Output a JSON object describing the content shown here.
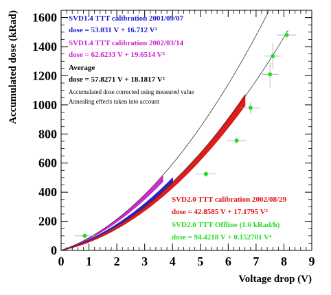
{
  "chart_data": {
    "type": "scatter",
    "xlabel": "Voltage drop (V)",
    "ylabel": "Accumulated dose (kRad)",
    "xlim": [
      0,
      9
    ],
    "ylim": [
      0,
      1650
    ],
    "x_ticks": [
      "0",
      "1",
      "2",
      "3",
      "4",
      "5",
      "6",
      "7",
      "8",
      "9"
    ],
    "x_tick_values": [
      0,
      1,
      2,
      3,
      4,
      5,
      6,
      7,
      8,
      9
    ],
    "y_ticks": [
      "0",
      "200",
      "400",
      "600",
      "800",
      "1000",
      "1200",
      "1400",
      "1600"
    ],
    "y_tick_values": [
      0,
      200,
      400,
      600,
      800,
      1000,
      1200,
      1400,
      1600
    ],
    "grid": false,
    "legend_placement": "top-left and bottom-right text blocks",
    "annotations": [
      {
        "text": "SVD1.4 TTT calibration 2001/09/07",
        "color": "#1a1acc"
      },
      {
        "text": "dose = 53.031 V + 16.712 V²",
        "color": "#1a1acc"
      },
      {
        "text": "SVD1.4 TTT calibration 2002/03/14",
        "color": "#cc22cc"
      },
      {
        "text": "dose = 62.6233 V + 19.6514 V²",
        "color": "#cc22cc"
      },
      {
        "text": "Average",
        "color": "#000000"
      },
      {
        "text": "dose = 57.8271 V + 18.1817 V²",
        "color": "#000000"
      },
      {
        "text": "Accumulated dose corrected using measured value",
        "color": "#000000"
      },
      {
        "text": "Annealing effects taken into account",
        "color": "#000000"
      },
      {
        "text": "SVD2.0 TTT calibration 2002/08/29",
        "color": "#dd1111"
      },
      {
        "text": "dose = 42.8585 V + 17.1795 V²",
        "color": "#dd1111"
      },
      {
        "text": "SVD2.0 TTT Offline (1.6 kRad/h)",
        "color": "#22dd22"
      },
      {
        "text": "dose = 94.4218 V + 0.152701 V⁴",
        "color": "#22dd22"
      }
    ],
    "series": [
      {
        "kind": "band",
        "color": "#1a1acc",
        "a": 53.031,
        "b": 16.712,
        "power": 2,
        "scale_low": 0.965,
        "scale_high": 1.035,
        "x_range": [
          0,
          4.0
        ]
      },
      {
        "kind": "band",
        "color": "#cc22cc",
        "a": 62.6233,
        "b": 19.6514,
        "power": 2,
        "scale_low": 0.965,
        "scale_high": 1.035,
        "x_range": [
          0,
          3.65
        ]
      },
      {
        "kind": "band",
        "color": "#dd1111",
        "a": 42.8585,
        "b": 17.1795,
        "power": 2,
        "scale_low": 0.965,
        "scale_high": 1.035,
        "x_range": [
          0,
          6.6
        ]
      },
      {
        "kind": "curve",
        "color": "#333333",
        "a": 57.8271,
        "b": 18.1817,
        "power": 2,
        "scale": 1.14,
        "x_range": [
          0,
          8.0
        ]
      },
      {
        "kind": "curve",
        "color": "#333333",
        "a": 57.8271,
        "b": 18.1817,
        "power": 2,
        "scale": 0.9,
        "x_range": [
          0,
          8.15
        ]
      },
      {
        "kind": "points",
        "color": "#22dd22",
        "x": [
          0.85,
          5.2,
          6.3,
          6.8,
          7.5,
          7.6,
          8.1
        ],
        "y": [
          100,
          525,
          755,
          980,
          1210,
          1335,
          1480
        ],
        "x_err": [
          0.35,
          0.35,
          0.35,
          0.35,
          0.3,
          0.3,
          0.35
        ],
        "y_err": [
          15,
          20,
          20,
          40,
          90,
          90,
          30
        ]
      }
    ]
  }
}
